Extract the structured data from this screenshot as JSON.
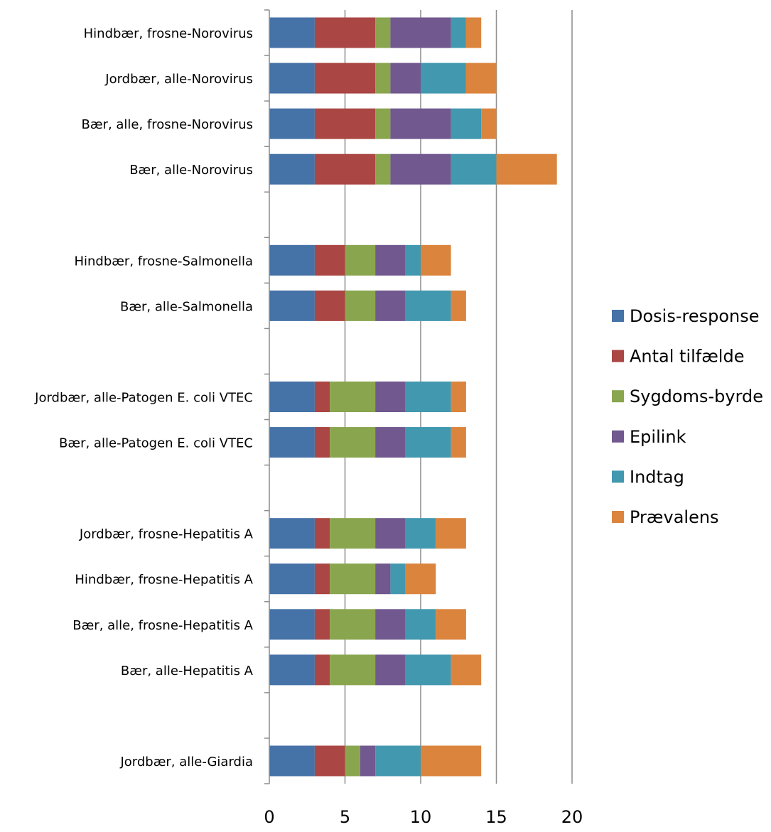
{
  "chart_data": {
    "type": "bar",
    "orientation": "horizontal",
    "stacked": true,
    "categories": [
      "Hindbær, frosne-Norovirus",
      "Jordbær, alle-Norovirus",
      "Bær, alle, frosne-Norovirus",
      "Bær, alle-Norovirus",
      "",
      "Hindbær, frosne-Salmonella",
      "Bær, alle-Salmonella",
      "",
      "Jordbær, alle-Patogen E. coli VTEC",
      "Bær, alle-Patogen E. coli VTEC",
      "",
      "Jordbær, frosne-Hepatitis A",
      "Hindbær, frosne-Hepatitis A",
      "Bær, alle, frosne-Hepatitis A",
      "Bær, alle-Hepatitis A",
      "",
      "Jordbær, alle-Giardia"
    ],
    "series": [
      {
        "name": "Dosis-response",
        "color": "#4572A7",
        "values": [
          3,
          3,
          3,
          3,
          null,
          3,
          3,
          null,
          3,
          3,
          null,
          3,
          3,
          3,
          3,
          null,
          3
        ]
      },
      {
        "name": "Antal tilfælde",
        "color": "#AA4643",
        "values": [
          4,
          4,
          4,
          4,
          null,
          2,
          2,
          null,
          1,
          1,
          null,
          1,
          1,
          1,
          1,
          null,
          2
        ]
      },
      {
        "name": "Sygdoms-byrde",
        "color": "#89A54E",
        "values": [
          1,
          1,
          1,
          1,
          null,
          2,
          2,
          null,
          3,
          3,
          null,
          3,
          3,
          3,
          3,
          null,
          1
        ]
      },
      {
        "name": "Epilink",
        "color": "#71588F",
        "values": [
          4,
          2,
          4,
          4,
          null,
          2,
          2,
          null,
          2,
          2,
          null,
          2,
          1,
          2,
          2,
          null,
          1
        ]
      },
      {
        "name": "Indtag",
        "color": "#4198AF",
        "values": [
          1,
          3,
          2,
          3,
          null,
          1,
          3,
          null,
          3,
          3,
          null,
          2,
          1,
          2,
          3,
          null,
          3
        ]
      },
      {
        "name": "Prævalens",
        "color": "#DB843D",
        "values": [
          1,
          2,
          1,
          4,
          null,
          2,
          1,
          null,
          1,
          1,
          null,
          2,
          2,
          2,
          2,
          null,
          4
        ]
      }
    ],
    "xlim": [
      0,
      20
    ],
    "xticks": [
      "0",
      "5",
      "10",
      "15",
      "20"
    ],
    "grid": true,
    "legend_position": "right"
  }
}
